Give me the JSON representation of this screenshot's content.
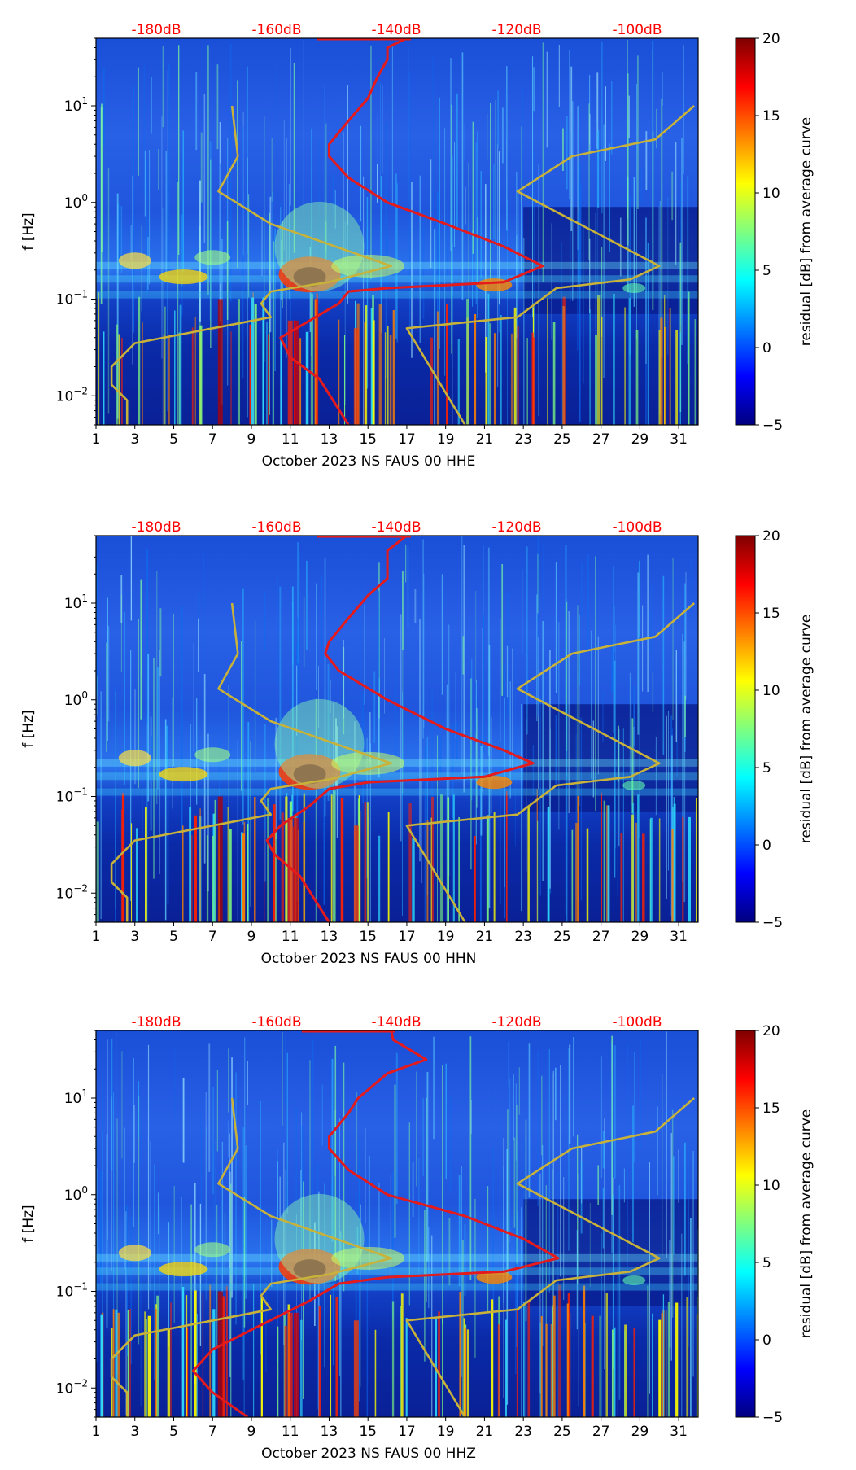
{
  "colors": {
    "red_curve": "#e41a1c",
    "olive_curve": "#c8b23a",
    "top_labels": "#ff0000",
    "axis": "#000000"
  },
  "colormap": "jet",
  "chart_data": [
    {
      "type": "heatmap",
      "xlabel": "October 2023 NS FAUS 00 HHE",
      "ylabel": "f [Hz]",
      "xlim": [
        1,
        32
      ],
      "ylim": [
        0.005,
        50
      ],
      "yscale": "log",
      "xticks": [
        "1",
        "3",
        "5",
        "7",
        "9",
        "11",
        "13",
        "15",
        "17",
        "19",
        "21",
        "23",
        "25",
        "27",
        "29",
        "31"
      ],
      "yticks": [
        "10^-2",
        "10^-1",
        "10^0",
        "10^1"
      ],
      "top_ticks": [
        "-180dB",
        "-160dB",
        "-140dB",
        "-120dB",
        "-100dB"
      ],
      "colorbar": {
        "label": "residual [dB] from average curve",
        "range": [
          -5,
          20
        ],
        "ticks": [
          "−5",
          "0",
          "5",
          "10",
          "15",
          "20"
        ]
      },
      "series": [
        {
          "points": [
            [
              17,
              50
            ],
            [
              16,
              40
            ],
            [
              16,
              30
            ],
            [
              15.5,
              20
            ],
            [
              15,
              12
            ],
            [
              14,
              7
            ],
            [
              13,
              4
            ],
            [
              13,
              3
            ],
            [
              14,
              1.8
            ],
            [
              16,
              1
            ],
            [
              19,
              0.6
            ],
            [
              22,
              0.35
            ],
            [
              24,
              0.22
            ],
            [
              22,
              0.15
            ],
            [
              16,
              0.13
            ],
            [
              14,
              0.12
            ],
            [
              13.5,
              0.09
            ],
            [
              12,
              0.06
            ],
            [
              10.5,
              0.04
            ],
            [
              11,
              0.025
            ],
            [
              12.5,
              0.015
            ],
            [
              14,
              0.005
            ]
          ]
        },
        {
          "points": [
            [
              8,
              10
            ],
            [
              8.3,
              3
            ],
            [
              7.3,
              1.3
            ],
            [
              10,
              0.6
            ],
            [
              16.2,
              0.22
            ],
            [
              13,
              0.15
            ],
            [
              10,
              0.12
            ],
            [
              9.5,
              0.09
            ],
            [
              10,
              0.065
            ],
            [
              3,
              0.035
            ],
            [
              1.8,
              0.02
            ],
            [
              1.8,
              0.013
            ],
            [
              2.6,
              0.009
            ],
            [
              2.6,
              0.005
            ]
          ]
        },
        {
          "points": [
            [
              31.8,
              10
            ],
            [
              29.8,
              4.5
            ],
            [
              25.5,
              3
            ],
            [
              22.7,
              1.3
            ],
            [
              30,
              0.22
            ],
            [
              28.5,
              0.16
            ],
            [
              24.7,
              0.13
            ],
            [
              22.7,
              0.065
            ],
            [
              17,
              0.05
            ],
            [
              20,
              0.005
            ]
          ]
        }
      ]
    },
    {
      "type": "heatmap",
      "xlabel": "October 2023 NS FAUS 00 HHN",
      "ylabel": "f [Hz]",
      "xlim": [
        1,
        32
      ],
      "ylim": [
        0.005,
        50
      ],
      "yscale": "log",
      "xticks": [
        "1",
        "3",
        "5",
        "7",
        "9",
        "11",
        "13",
        "15",
        "17",
        "19",
        "21",
        "23",
        "25",
        "27",
        "29",
        "31"
      ],
      "yticks": [
        "10^-2",
        "10^-1",
        "10^0",
        "10^1"
      ],
      "top_ticks": [
        "-180dB",
        "-160dB",
        "-140dB",
        "-120dB",
        "-100dB"
      ],
      "colorbar": {
        "label": "residual [dB] from average curve",
        "range": [
          -5,
          20
        ],
        "ticks": [
          "−5",
          "0",
          "5",
          "10",
          "15",
          "20"
        ]
      },
      "series": [
        {
          "points": [
            [
              17,
              50
            ],
            [
              16,
              35
            ],
            [
              16,
              18
            ],
            [
              15,
              12
            ],
            [
              14,
              7
            ],
            [
              13,
              4
            ],
            [
              12.8,
              3
            ],
            [
              13.5,
              2
            ],
            [
              16,
              1
            ],
            [
              19,
              0.5
            ],
            [
              22,
              0.3
            ],
            [
              23.5,
              0.22
            ],
            [
              21,
              0.16
            ],
            [
              15,
              0.14
            ],
            [
              13,
              0.12
            ],
            [
              12,
              0.08
            ],
            [
              10.5,
              0.05
            ],
            [
              9.8,
              0.035
            ],
            [
              10.2,
              0.025
            ],
            [
              11.5,
              0.015
            ],
            [
              13,
              0.005
            ]
          ]
        },
        {
          "points": [
            [
              8,
              10
            ],
            [
              8.3,
              3
            ],
            [
              7.3,
              1.3
            ],
            [
              10,
              0.6
            ],
            [
              16.2,
              0.22
            ],
            [
              13,
              0.15
            ],
            [
              10,
              0.12
            ],
            [
              9.5,
              0.09
            ],
            [
              10,
              0.065
            ],
            [
              3,
              0.035
            ],
            [
              1.8,
              0.02
            ],
            [
              1.8,
              0.013
            ],
            [
              2.6,
              0.009
            ],
            [
              2.6,
              0.005
            ]
          ]
        },
        {
          "points": [
            [
              31.8,
              10
            ],
            [
              29.8,
              4.5
            ],
            [
              25.5,
              3
            ],
            [
              22.7,
              1.3
            ],
            [
              30,
              0.22
            ],
            [
              28.5,
              0.16
            ],
            [
              24.7,
              0.13
            ],
            [
              22.7,
              0.065
            ],
            [
              17,
              0.05
            ],
            [
              20,
              0.005
            ]
          ]
        }
      ]
    },
    {
      "type": "heatmap",
      "xlabel": "October 2023 NS FAUS 00 HHZ",
      "ylabel": "f [Hz]",
      "xlim": [
        1,
        32
      ],
      "ylim": [
        0.005,
        50
      ],
      "yscale": "log",
      "xticks": [
        "1",
        "3",
        "5",
        "7",
        "9",
        "11",
        "13",
        "15",
        "17",
        "19",
        "21",
        "23",
        "25",
        "27",
        "29",
        "31"
      ],
      "yticks": [
        "10^-2",
        "10^-1",
        "10^0",
        "10^1"
      ],
      "top_ticks": [
        "-180dB",
        "-160dB",
        "-140dB",
        "-120dB",
        "-100dB"
      ],
      "colorbar": {
        "label": "residual [dB] from average curve",
        "range": [
          -5,
          20
        ],
        "ticks": [
          "−5",
          "0",
          "5",
          "10",
          "15",
          "20"
        ]
      },
      "series": [
        {
          "points": [
            [
              16.2,
              50
            ],
            [
              16.3,
              40
            ],
            [
              18,
              25
            ],
            [
              16,
              18
            ],
            [
              14.5,
              10
            ],
            [
              14,
              7
            ],
            [
              13,
              4
            ],
            [
              13,
              3
            ],
            [
              14,
              1.8
            ],
            [
              16,
              1
            ],
            [
              20,
              0.6
            ],
            [
              23,
              0.35
            ],
            [
              24.8,
              0.22
            ],
            [
              22,
              0.16
            ],
            [
              16,
              0.14
            ],
            [
              13.5,
              0.12
            ],
            [
              12,
              0.08
            ],
            [
              9,
              0.04
            ],
            [
              7,
              0.025
            ],
            [
              6,
              0.015
            ],
            [
              7,
              0.009
            ],
            [
              8.8,
              0.005
            ]
          ]
        },
        {
          "points": [
            [
              8,
              10
            ],
            [
              8.3,
              3
            ],
            [
              7.3,
              1.3
            ],
            [
              10,
              0.6
            ],
            [
              16.2,
              0.22
            ],
            [
              13,
              0.15
            ],
            [
              10,
              0.12
            ],
            [
              9.5,
              0.09
            ],
            [
              10,
              0.065
            ],
            [
              3,
              0.035
            ],
            [
              1.8,
              0.02
            ],
            [
              1.8,
              0.013
            ],
            [
              2.6,
              0.009
            ],
            [
              2.6,
              0.005
            ]
          ]
        },
        {
          "points": [
            [
              31.8,
              10
            ],
            [
              29.8,
              4.5
            ],
            [
              25.5,
              3
            ],
            [
              22.7,
              1.3
            ],
            [
              30,
              0.22
            ],
            [
              28.5,
              0.16
            ],
            [
              24.7,
              0.13
            ],
            [
              22.7,
              0.065
            ],
            [
              17,
              0.05
            ],
            [
              20,
              0.005
            ]
          ]
        }
      ]
    }
  ]
}
